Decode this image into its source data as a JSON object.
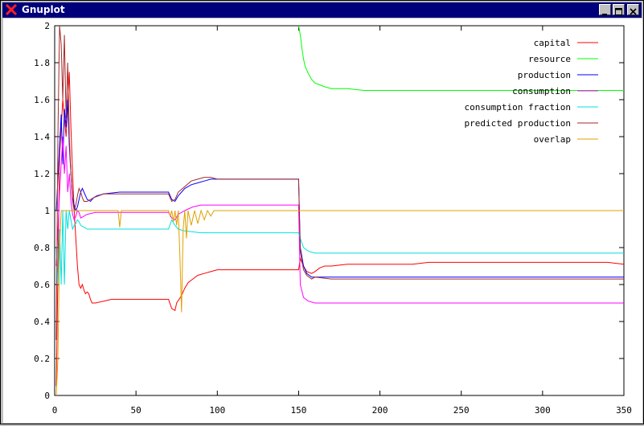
{
  "window": {
    "title": "Gnuplot",
    "controls": [
      "minimize",
      "maximize",
      "close"
    ]
  },
  "chart_data": {
    "type": "line",
    "title": "",
    "xlabel": "",
    "ylabel": "",
    "xlim": [
      0,
      350
    ],
    "ylim": [
      0,
      2
    ],
    "x_ticks": [
      0,
      50,
      100,
      150,
      200,
      250,
      300,
      350
    ],
    "y_ticks": [
      0,
      0.2,
      0.4,
      0.6,
      0.8,
      1,
      1.2,
      1.4,
      1.6,
      1.8,
      2
    ],
    "x_tick_labels": [
      "0",
      "50",
      "100",
      "150",
      "200",
      "250",
      "300",
      "350"
    ],
    "y_tick_labels": [
      "0",
      "0.2",
      "0.4",
      "0.6",
      "0.8",
      "1",
      "1.2",
      "1.4",
      "1.6",
      "1.8",
      "2"
    ],
    "legend_position": "top-right",
    "grid": false,
    "series": [
      {
        "name": "capital",
        "color": "#ff0000",
        "points": [
          [
            1,
            0.05
          ],
          [
            3,
            1.3
          ],
          [
            5,
            1.6
          ],
          [
            7,
            1.4
          ],
          [
            9,
            1.75
          ],
          [
            10,
            1.45
          ],
          [
            11,
            1.2
          ],
          [
            12,
            1.0
          ],
          [
            13,
            0.85
          ],
          [
            14,
            0.7
          ],
          [
            15,
            0.6
          ],
          [
            16,
            0.58
          ],
          [
            17,
            0.6
          ],
          [
            18,
            0.57
          ],
          [
            19,
            0.55
          ],
          [
            20,
            0.56
          ],
          [
            21,
            0.55
          ],
          [
            22,
            0.52
          ],
          [
            23,
            0.5
          ],
          [
            25,
            0.5
          ],
          [
            30,
            0.51
          ],
          [
            35,
            0.52
          ],
          [
            40,
            0.52
          ],
          [
            50,
            0.52
          ],
          [
            60,
            0.52
          ],
          [
            70,
            0.52
          ],
          [
            72,
            0.47
          ],
          [
            74,
            0.46
          ],
          [
            75,
            0.5
          ],
          [
            78,
            0.54
          ],
          [
            80,
            0.58
          ],
          [
            82,
            0.61
          ],
          [
            85,
            0.63
          ],
          [
            88,
            0.65
          ],
          [
            92,
            0.66
          ],
          [
            96,
            0.67
          ],
          [
            100,
            0.68
          ],
          [
            120,
            0.68
          ],
          [
            150,
            0.68
          ],
          [
            151,
            0.74
          ],
          [
            153,
            0.7
          ],
          [
            155,
            0.67
          ],
          [
            158,
            0.66
          ],
          [
            160,
            0.67
          ],
          [
            163,
            0.69
          ],
          [
            166,
            0.7
          ],
          [
            170,
            0.7
          ],
          [
            180,
            0.71
          ],
          [
            190,
            0.71
          ],
          [
            200,
            0.71
          ],
          [
            210,
            0.71
          ],
          [
            220,
            0.71
          ],
          [
            230,
            0.72
          ],
          [
            240,
            0.72
          ],
          [
            250,
            0.72
          ],
          [
            260,
            0.72
          ],
          [
            270,
            0.72
          ],
          [
            280,
            0.72
          ],
          [
            290,
            0.72
          ],
          [
            300,
            0.72
          ],
          [
            310,
            0.72
          ],
          [
            320,
            0.72
          ],
          [
            330,
            0.72
          ],
          [
            340,
            0.72
          ],
          [
            350,
            0.71
          ]
        ]
      },
      {
        "name": "resource",
        "color": "#00ff00",
        "points": [
          [
            150,
            2.0
          ],
          [
            151,
            1.95
          ],
          [
            152,
            1.88
          ],
          [
            153,
            1.82
          ],
          [
            154,
            1.78
          ],
          [
            156,
            1.74
          ],
          [
            158,
            1.71
          ],
          [
            160,
            1.69
          ],
          [
            163,
            1.68
          ],
          [
            166,
            1.67
          ],
          [
            170,
            1.66
          ],
          [
            180,
            1.66
          ],
          [
            190,
            1.65
          ],
          [
            200,
            1.65
          ],
          [
            220,
            1.65
          ],
          [
            240,
            1.65
          ],
          [
            260,
            1.65
          ],
          [
            280,
            1.65
          ],
          [
            300,
            1.65
          ],
          [
            320,
            1.65
          ],
          [
            340,
            1.65
          ],
          [
            350,
            1.65
          ]
        ]
      },
      {
        "name": "production",
        "color": "#0000ff",
        "points": [
          [
            1,
            1.0
          ],
          [
            3,
            1.35
          ],
          [
            4,
            1.52
          ],
          [
            5,
            1.25
          ],
          [
            6,
            1.55
          ],
          [
            7,
            1.45
          ],
          [
            8,
            1.6
          ],
          [
            9,
            1.35
          ],
          [
            10,
            1.2
          ],
          [
            11,
            1.07
          ],
          [
            12,
            1.03
          ],
          [
            13,
            1.0
          ],
          [
            14,
            1.02
          ],
          [
            15,
            1.06
          ],
          [
            16,
            1.1
          ],
          [
            17,
            1.12
          ],
          [
            18,
            1.1
          ],
          [
            19,
            1.08
          ],
          [
            20,
            1.06
          ],
          [
            22,
            1.05
          ],
          [
            24,
            1.07
          ],
          [
            26,
            1.08
          ],
          [
            30,
            1.09
          ],
          [
            40,
            1.1
          ],
          [
            50,
            1.1
          ],
          [
            60,
            1.1
          ],
          [
            70,
            1.1
          ],
          [
            72,
            1.06
          ],
          [
            74,
            1.05
          ],
          [
            76,
            1.08
          ],
          [
            78,
            1.1
          ],
          [
            80,
            1.12
          ],
          [
            84,
            1.14
          ],
          [
            88,
            1.15
          ],
          [
            92,
            1.16
          ],
          [
            96,
            1.17
          ],
          [
            100,
            1.17
          ],
          [
            150,
            1.17
          ],
          [
            151,
            0.8
          ],
          [
            153,
            0.7
          ],
          [
            155,
            0.66
          ],
          [
            158,
            0.64
          ],
          [
            160,
            0.64
          ],
          [
            170,
            0.64
          ],
          [
            200,
            0.64
          ],
          [
            250,
            0.64
          ],
          [
            300,
            0.64
          ],
          [
            350,
            0.64
          ]
        ]
      },
      {
        "name": "consumption",
        "color": "#ff00ff",
        "points": [
          [
            1,
            0.7
          ],
          [
            3,
            1.1
          ],
          [
            5,
            1.4
          ],
          [
            6,
            1.2
          ],
          [
            7,
            1.35
          ],
          [
            8,
            1.1
          ],
          [
            9,
            1.2
          ],
          [
            10,
            1.05
          ],
          [
            11,
            0.98
          ],
          [
            12,
            0.95
          ],
          [
            13,
            0.97
          ],
          [
            14,
            1.0
          ],
          [
            15,
            0.99
          ],
          [
            16,
            0.96
          ],
          [
            18,
            0.97
          ],
          [
            20,
            0.98
          ],
          [
            25,
            0.99
          ],
          [
            30,
            0.99
          ],
          [
            40,
            0.99
          ],
          [
            50,
            0.99
          ],
          [
            60,
            0.99
          ],
          [
            70,
            0.99
          ],
          [
            72,
            0.96
          ],
          [
            74,
            0.95
          ],
          [
            76,
            0.98
          ],
          [
            80,
            1.0
          ],
          [
            85,
            1.02
          ],
          [
            90,
            1.03
          ],
          [
            95,
            1.03
          ],
          [
            100,
            1.03
          ],
          [
            150,
            1.03
          ],
          [
            151,
            0.6
          ],
          [
            153,
            0.53
          ],
          [
            156,
            0.51
          ],
          [
            160,
            0.5
          ],
          [
            170,
            0.5
          ],
          [
            200,
            0.5
          ],
          [
            250,
            0.5
          ],
          [
            300,
            0.5
          ],
          [
            350,
            0.5
          ]
        ]
      },
      {
        "name": "consumption fraction",
        "color": "#00e0e0",
        "points": [
          [
            1,
            0.8
          ],
          [
            2,
            0.6
          ],
          [
            3,
            0.9
          ],
          [
            4,
            0.6
          ],
          [
            5,
            1.0
          ],
          [
            6,
            0.6
          ],
          [
            7,
            1.0
          ],
          [
            8,
            0.9
          ],
          [
            9,
            1.0
          ],
          [
            10,
            0.95
          ],
          [
            11,
            0.9
          ],
          [
            12,
            0.92
          ],
          [
            13,
            0.93
          ],
          [
            14,
            0.95
          ],
          [
            15,
            0.94
          ],
          [
            16,
            0.92
          ],
          [
            18,
            0.91
          ],
          [
            20,
            0.9
          ],
          [
            30,
            0.9
          ],
          [
            40,
            0.9
          ],
          [
            50,
            0.9
          ],
          [
            60,
            0.9
          ],
          [
            70,
            0.9
          ],
          [
            72,
            0.95
          ],
          [
            74,
            0.92
          ],
          [
            76,
            0.9
          ],
          [
            80,
            0.89
          ],
          [
            90,
            0.88
          ],
          [
            100,
            0.88
          ],
          [
            150,
            0.88
          ],
          [
            151,
            0.85
          ],
          [
            153,
            0.8
          ],
          [
            156,
            0.78
          ],
          [
            160,
            0.77
          ],
          [
            200,
            0.77
          ],
          [
            250,
            0.77
          ],
          [
            300,
            0.77
          ],
          [
            350,
            0.77
          ]
        ]
      },
      {
        "name": "predicted production",
        "color": "#a52a2a",
        "points": [
          [
            1,
            0.3
          ],
          [
            2,
            1.4
          ],
          [
            3,
            2.0
          ],
          [
            4,
            1.9
          ],
          [
            5,
            1.6
          ],
          [
            6,
            1.95
          ],
          [
            7,
            1.5
          ],
          [
            8,
            1.8
          ],
          [
            9,
            1.4
          ],
          [
            10,
            1.2
          ],
          [
            11,
            1.05
          ],
          [
            12,
            1.0
          ],
          [
            13,
            1.03
          ],
          [
            14,
            1.08
          ],
          [
            15,
            1.12
          ],
          [
            16,
            1.1
          ],
          [
            17,
            1.07
          ],
          [
            18,
            1.05
          ],
          [
            20,
            1.05
          ],
          [
            24,
            1.07
          ],
          [
            30,
            1.09
          ],
          [
            40,
            1.09
          ],
          [
            50,
            1.09
          ],
          [
            60,
            1.09
          ],
          [
            70,
            1.09
          ],
          [
            72,
            1.05
          ],
          [
            74,
            1.06
          ],
          [
            76,
            1.1
          ],
          [
            80,
            1.13
          ],
          [
            84,
            1.16
          ],
          [
            88,
            1.17
          ],
          [
            92,
            1.18
          ],
          [
            96,
            1.18
          ],
          [
            100,
            1.17
          ],
          [
            150,
            1.17
          ],
          [
            151,
            0.78
          ],
          [
            153,
            0.68
          ],
          [
            155,
            0.65
          ],
          [
            158,
            0.63
          ],
          [
            160,
            0.64
          ],
          [
            170,
            0.63
          ],
          [
            200,
            0.63
          ],
          [
            250,
            0.63
          ],
          [
            300,
            0.63
          ],
          [
            350,
            0.63
          ]
        ]
      },
      {
        "name": "overlap",
        "color": "#e0a000",
        "points": [
          [
            1,
            0.0
          ],
          [
            2,
            0.2
          ],
          [
            3,
            0.8
          ],
          [
            4,
            1.0
          ],
          [
            10,
            1.0
          ],
          [
            20,
            1.0
          ],
          [
            30,
            1.0
          ],
          [
            39,
            1.0
          ],
          [
            40,
            0.91
          ],
          [
            41,
            1.0
          ],
          [
            50,
            1.0
          ],
          [
            70,
            1.0
          ],
          [
            71,
            0.97
          ],
          [
            72,
            1.0
          ],
          [
            73,
            0.94
          ],
          [
            74,
            1.0
          ],
          [
            75,
            0.92
          ],
          [
            76,
            1.0
          ],
          [
            77,
            0.75
          ],
          [
            78,
            0.45
          ],
          [
            79,
            0.9
          ],
          [
            80,
            1.0
          ],
          [
            81,
            0.85
          ],
          [
            82,
            1.0
          ],
          [
            84,
            0.92
          ],
          [
            86,
            1.0
          ],
          [
            88,
            0.93
          ],
          [
            90,
            1.0
          ],
          [
            92,
            0.95
          ],
          [
            94,
            1.0
          ],
          [
            96,
            0.97
          ],
          [
            98,
            1.0
          ],
          [
            150,
            1.0
          ],
          [
            200,
            1.0
          ],
          [
            250,
            1.0
          ],
          [
            300,
            1.0
          ],
          [
            350,
            1.0
          ]
        ]
      }
    ]
  }
}
